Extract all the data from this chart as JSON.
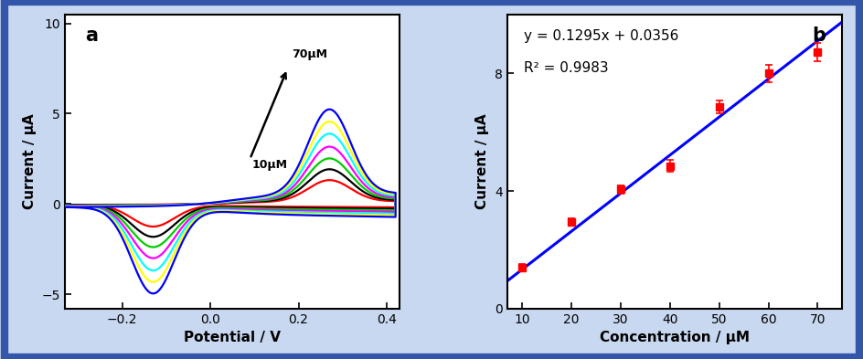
{
  "panel_a_label": "a",
  "panel_b_label": "b",
  "annotation_top": "70μM",
  "annotation_bottom": "10μM",
  "xlabel_a": "Potential / V",
  "ylabel_a": "Current / μA",
  "xlim_a": [
    -0.33,
    0.43
  ],
  "ylim_a": [
    -5.8,
    10.5
  ],
  "xticks_a": [
    -0.2,
    0.0,
    0.2,
    0.4
  ],
  "yticks_a": [
    -5,
    0,
    5,
    10
  ],
  "xlabel_b": "Concentration / μM",
  "ylabel_b": "Current / μA",
  "xlim_b": [
    7,
    75
  ],
  "ylim_b": [
    0,
    10
  ],
  "xticks_b": [
    10,
    20,
    30,
    40,
    50,
    60,
    70
  ],
  "yticks_b": [
    0,
    4,
    8
  ],
  "conc_values": [
    10,
    20,
    30,
    40,
    50,
    60,
    70
  ],
  "current_values": [
    1.39,
    2.95,
    4.05,
    4.85,
    6.85,
    7.99,
    8.72
  ],
  "error_values": [
    0.12,
    0.13,
    0.13,
    0.2,
    0.22,
    0.28,
    0.3
  ],
  "slope": 0.1295,
  "intercept": 0.0356,
  "r2": 0.9983,
  "equation_text": "y = 0.1295x + 0.0356",
  "r2_text": "R² = 0.9983",
  "line_color_b": "blue",
  "marker_color_b": "red",
  "curve_colors": [
    "red",
    "black",
    "#00CC00",
    "magenta",
    "cyan",
    "yellow",
    "blue"
  ],
  "scales": [
    0.55,
    0.8,
    1.05,
    1.32,
    1.62,
    1.9,
    2.18
  ],
  "background_color": "#C8D8F0",
  "plot_bg_color": "#FFFFFF",
  "border_color": "#3355AA"
}
